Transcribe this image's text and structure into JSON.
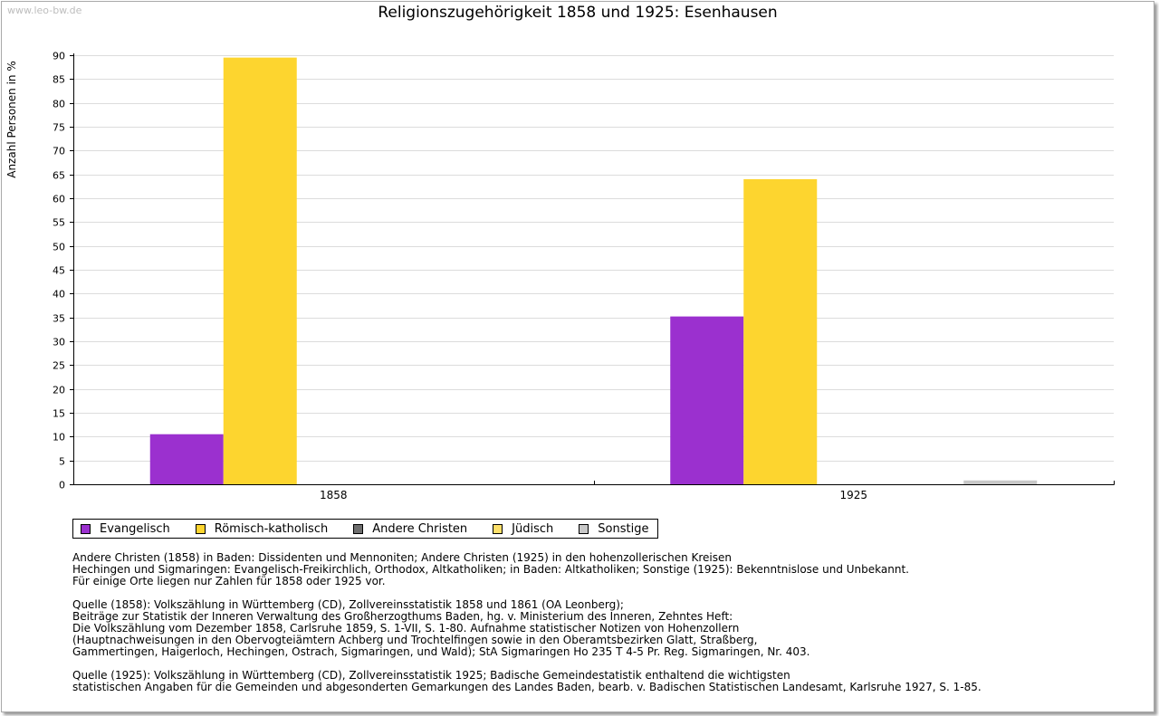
{
  "watermark": "www.leo-bw.de",
  "colors": {
    "Evangelisch": "#9b30cf",
    "Römisch-katholisch": "#fdd52f",
    "Andere Christen": "#6e6e6e",
    "Jüdisch": "#fde06a",
    "Sonstige": "#c8c8c8"
  },
  "chart_data": {
    "type": "bar",
    "title": "Religionszugehörigkeit 1858 und 1925: Esenhausen",
    "xlabel": "",
    "ylabel": "Anzahl Personen in %",
    "ylim": [
      0,
      90
    ],
    "yticks": [
      0,
      5,
      10,
      15,
      20,
      25,
      30,
      35,
      40,
      45,
      50,
      55,
      60,
      65,
      70,
      75,
      80,
      85,
      90
    ],
    "grid": true,
    "categories": [
      "1858",
      "1925"
    ],
    "series": [
      {
        "name": "Evangelisch",
        "values": [
          10.5,
          35.2
        ]
      },
      {
        "name": "Römisch-katholisch",
        "values": [
          89.5,
          64.0
        ]
      },
      {
        "name": "Andere Christen",
        "values": [
          0,
          0
        ]
      },
      {
        "name": "Jüdisch",
        "values": [
          0,
          0
        ]
      },
      {
        "name": "Sonstige",
        "values": [
          0,
          0.8
        ]
      }
    ],
    "legend_position": "bottom-left"
  },
  "legend": [
    {
      "label": "Evangelisch",
      "color": "#9b30cf"
    },
    {
      "label": "Römisch-katholisch",
      "color": "#fdd52f"
    },
    {
      "label": "Andere Christen",
      "color": "#6e6e6e"
    },
    {
      "label": "Jüdisch",
      "color": "#fde06a"
    },
    {
      "label": "Sonstige",
      "color": "#c8c8c8"
    }
  ],
  "notes": [
    "Andere Christen (1858) in Baden: Dissidenten und Mennoniten; Andere Christen (1925) in den hohenzollerischen Kreisen\nHechingen und Sigmaringen: Evangelisch-Freikirchlich, Orthodox, Altkatholiken; in Baden: Altkatholiken; Sonstige (1925): Bekenntnislose und Unbekannt.\nFür einige Orte liegen nur Zahlen für 1858 oder 1925 vor.",
    "Quelle (1858): Volkszählung in Württemberg (CD), Zollvereinsstatistik 1858 und 1861 (OA Leonberg);\nBeiträge zur Statistik der Inneren Verwaltung des Großherzogthums Baden, hg. v. Ministerium des Inneren, Zehntes Heft:\nDie Volkszählung vom Dezember 1858, Carlsruhe 1859, S. 1-VII, S. 1-80. Aufnahme statistischer Notizen von Hohenzollern\n(Hauptnachweisungen in den Obervogteiämtern Achberg und Trochtelfingen sowie in den Oberamtsbezirken Glatt, Straßberg,\nGammertingen, Haigerloch, Hechingen, Ostrach, Sigmaringen, und Wald); StA Sigmaringen Ho 235 T 4-5 Pr. Reg. Sigmaringen, Nr. 403.",
    "Quelle (1925): Volkszählung in Württemberg (CD), Zollvereinsstatistik 1925; Badische Gemeindestatistik enthaltend die wichtigsten\nstatistischen Angaben für die Gemeinden und abgesonderten Gemarkungen des Landes Baden, bearb. v. Badischen Statistischen Landesamt, Karlsruhe 1927, S. 1-85."
  ]
}
